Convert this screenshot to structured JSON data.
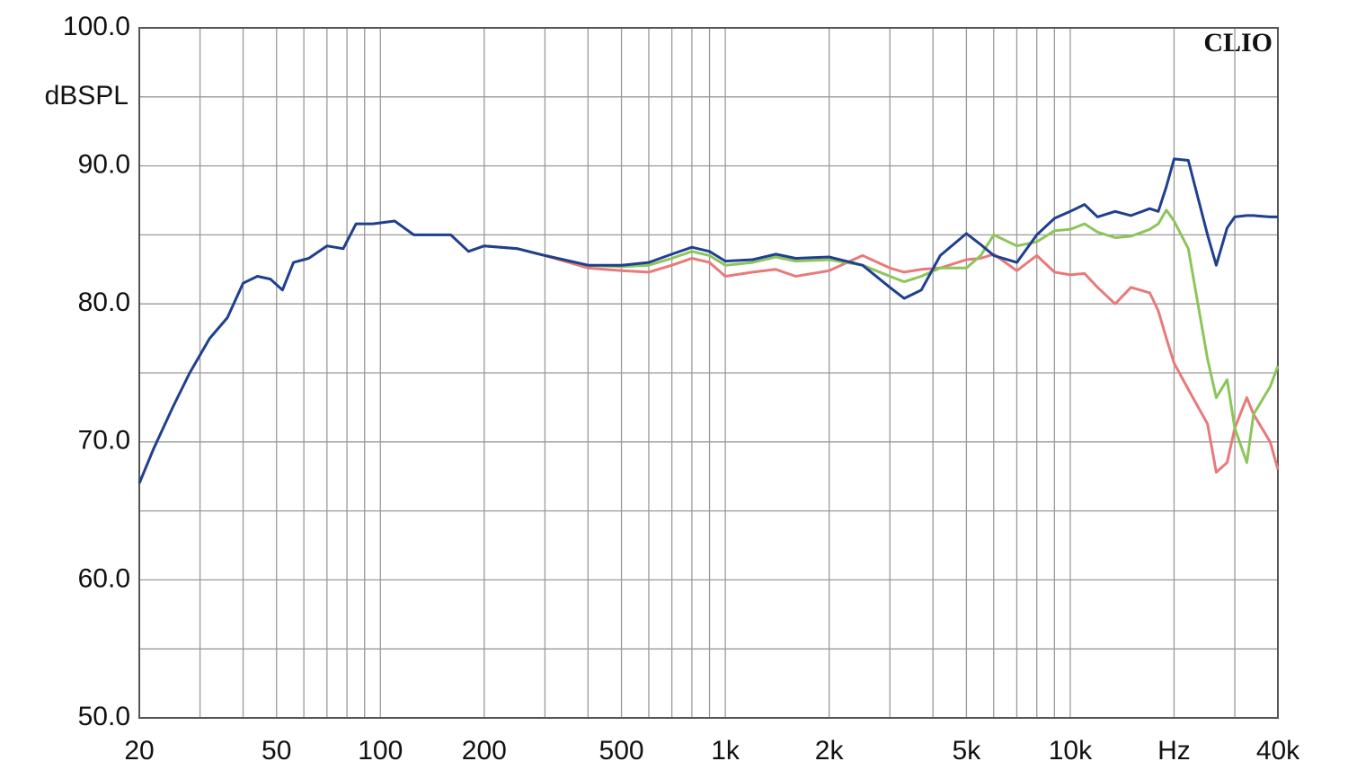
{
  "chart_data": {
    "type": "line",
    "y_label": "dBSPL",
    "annotation": "CLIO",
    "xscale": "log",
    "grid": true,
    "x": [
      20,
      22,
      25,
      28,
      32,
      36,
      40,
      44,
      48,
      52,
      56,
      62,
      70,
      78,
      85,
      95,
      110,
      125,
      140,
      160,
      180,
      200,
      250,
      300,
      400,
      500,
      600,
      700,
      800,
      900,
      1000,
      1200,
      1400,
      1600,
      2000,
      2500,
      3000,
      3300,
      3700,
      4200,
      5000,
      5500,
      6000,
      7000,
      8000,
      9000,
      10000,
      11000,
      12000,
      13500,
      15000,
      17000,
      18000,
      19000,
      20000,
      22000,
      25000,
      26500,
      28500,
      30000,
      32500,
      34000,
      38000,
      40000
    ],
    "series": [
      {
        "color": "#e87a7a",
        "values": [
          null,
          null,
          null,
          null,
          null,
          null,
          null,
          null,
          null,
          null,
          null,
          null,
          null,
          null,
          null,
          null,
          null,
          null,
          null,
          null,
          null,
          84.2,
          84,
          83.5,
          82.6,
          82.4,
          82.3,
          82.8,
          83.3,
          83,
          82,
          82.3,
          82.5,
          82,
          82.4,
          83.5,
          82.6,
          82.3,
          82.5,
          82.6,
          83.2,
          83.3,
          83.6,
          82.4,
          83.5,
          82.3,
          82.1,
          82.2,
          81.2,
          80,
          81.2,
          80.8,
          79.5,
          77.5,
          75.7,
          73.8,
          71.3,
          67.8,
          68.5,
          71,
          73.2,
          72,
          70,
          68
        ]
      },
      {
        "color": "#8cc55a",
        "values": [
          null,
          null,
          null,
          null,
          null,
          null,
          null,
          null,
          null,
          null,
          null,
          null,
          null,
          null,
          null,
          null,
          null,
          null,
          null,
          null,
          null,
          84.2,
          84,
          83.5,
          82.8,
          82.7,
          82.8,
          83.3,
          83.8,
          83.5,
          82.8,
          83,
          83.4,
          83.1,
          83.2,
          82.8,
          82,
          81.6,
          82,
          82.6,
          82.6,
          83.5,
          85,
          84.2,
          84.5,
          85.3,
          85.4,
          85.8,
          85.2,
          84.8,
          84.9,
          85.4,
          85.8,
          86.8,
          86,
          84,
          76,
          73.2,
          74.5,
          71,
          68.5,
          72,
          74,
          75.5
        ]
      },
      {
        "color": "#1f3f8f",
        "values": [
          67,
          69.5,
          72.5,
          75,
          77.5,
          79,
          81.5,
          82,
          81.8,
          81,
          83,
          83.3,
          84.2,
          84,
          85.8,
          85.8,
          86,
          85,
          85,
          85,
          83.8,
          84.2,
          84,
          83.5,
          82.8,
          82.8,
          83,
          83.6,
          84.1,
          83.8,
          83.1,
          83.2,
          83.6,
          83.3,
          83.4,
          82.8,
          81.2,
          80.4,
          81,
          83.5,
          85.1,
          84.3,
          83.5,
          83,
          85,
          86.2,
          86.7,
          87.2,
          86.3,
          86.7,
          86.4,
          86.9,
          86.7,
          88.5,
          90.5,
          90.4,
          85,
          82.8,
          85.5,
          86.3,
          86.4,
          86.4,
          86.3,
          86.3
        ]
      }
    ],
    "xlim": [
      20,
      40000
    ],
    "ylim": [
      50,
      100
    ],
    "xticks": [
      20,
      50,
      100,
      200,
      500,
      {
        "value": 1000,
        "label": "1k"
      },
      {
        "value": 2000,
        "label": "2k"
      },
      {
        "value": 5000,
        "label": "5k"
      },
      {
        "value": 10000,
        "label": "10k"
      },
      {
        "value": 20000,
        "label": "Hz"
      },
      {
        "value": 40000,
        "label": "40k"
      }
    ],
    "yticks": [
      {
        "value": 50,
        "label": "50.0"
      },
      {
        "value": 60,
        "label": "60.0"
      },
      {
        "value": 70,
        "label": "70.0"
      },
      {
        "value": 80,
        "label": "80.0"
      },
      {
        "value": 90,
        "label": "90.0"
      },
      {
        "value": 100,
        "label": "100.0"
      }
    ],
    "minor_xgrid": [
      30,
      40,
      60,
      70,
      80,
      90,
      300,
      400,
      600,
      700,
      800,
      900,
      3000,
      4000,
      6000,
      7000,
      8000,
      9000,
      30000
    ],
    "minor_ygrid": [
      55,
      65,
      75,
      85,
      95
    ]
  }
}
